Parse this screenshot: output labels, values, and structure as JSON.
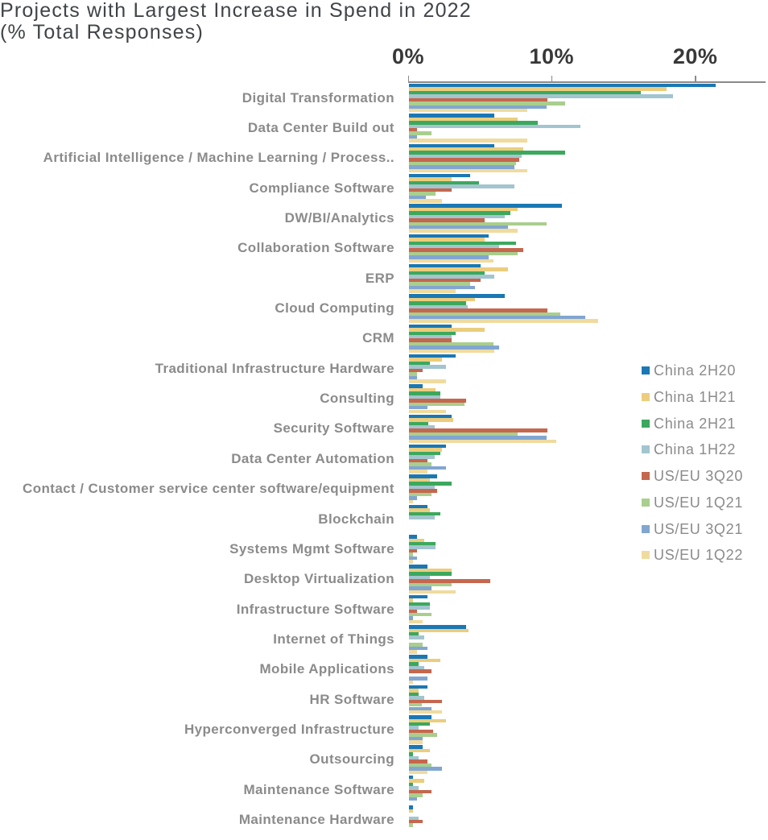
{
  "title": "Projects with Largest Increase in Spend in 2022",
  "subtitle": "(% Total Responses)",
  "chart_data": {
    "type": "bar",
    "orientation": "horizontal",
    "unit": "% of total responses",
    "title": "Projects with Largest Increase in Spend in 2022",
    "subtitle": "(% Total Responses)",
    "xlabel": "",
    "ylabel": "",
    "xlim": [
      0,
      25
    ],
    "grid": false,
    "legend_position": "right",
    "x_axis_ticks": [
      {
        "value": 0,
        "label": "0%"
      },
      {
        "value": 10,
        "label": "10%"
      },
      {
        "value": 20,
        "label": "20%"
      }
    ],
    "categories": [
      "Digital Transformation",
      "Data Center Build out",
      "Artificial Intelligence / Machine Learning / Process..",
      "Compliance Software",
      "DW/BI/Analytics",
      "Collaboration Software",
      "ERP",
      "Cloud Computing",
      "CRM",
      "Traditional Infrastructure Hardware",
      "Consulting",
      "Security Software",
      "Data Center Automation",
      "Contact / Customer service center software/equipment",
      "Blockchain",
      "Systems Mgmt Software",
      "Desktop Virtualization",
      "Infrastructure Software",
      "Internet of Things",
      "Mobile Applications",
      "HR Software",
      "Hyperconverged Infrastructure",
      "Outsourcing",
      "Maintenance Software",
      "Maintenance Hardware"
    ],
    "series": [
      {
        "name": "China 2H20",
        "color": "#1a78b4",
        "values": [
          21.4,
          6.0,
          6.0,
          4.3,
          10.7,
          5.6,
          5.0,
          6.7,
          3.0,
          3.3,
          1.0,
          3.0,
          2.6,
          2.0,
          1.3,
          0.6,
          1.3,
          1.3,
          4.0,
          1.3,
          1.3,
          1.6,
          1.0,
          0.3,
          0.3
        ]
      },
      {
        "name": "China 1H21",
        "color": "#ebcd7d",
        "values": [
          18.0,
          7.6,
          8.0,
          3.0,
          7.6,
          5.3,
          6.9,
          4.6,
          5.3,
          2.3,
          1.9,
          3.1,
          2.3,
          1.5,
          1.5,
          1.1,
          3.0,
          0.3,
          4.2,
          2.2,
          0.7,
          2.6,
          1.5,
          1.1,
          0.3
        ]
      },
      {
        "name": "China 2H21",
        "color": "#3ca85d",
        "values": [
          16.2,
          9.0,
          10.9,
          4.9,
          7.1,
          7.5,
          5.3,
          4.0,
          3.3,
          1.5,
          2.2,
          1.4,
          2.2,
          3.0,
          2.2,
          1.9,
          3.0,
          1.5,
          0.7,
          0.7,
          0.7,
          1.5,
          0.3,
          0.3,
          0
        ]
      },
      {
        "name": "China 1H22",
        "color": "#a2c5cf",
        "values": [
          18.4,
          12.0,
          7.9,
          7.4,
          6.7,
          6.3,
          6.0,
          4.1,
          3.0,
          2.6,
          2.2,
          1.8,
          1.8,
          1.8,
          1.8,
          1.9,
          1.5,
          1.5,
          1.1,
          1.1,
          1.1,
          0.7,
          0.7,
          0.7,
          0.7
        ]
      },
      {
        "name": "US/EU 3Q20",
        "color": "#c5674e",
        "values": [
          9.7,
          0.6,
          7.7,
          3.0,
          5.3,
          8.0,
          5.0,
          9.7,
          3.0,
          1.0,
          4.0,
          9.7,
          1.3,
          2.0,
          0,
          0.6,
          5.7,
          0.6,
          0,
          1.6,
          2.3,
          1.7,
          1.3,
          1.6,
          1.0
        ]
      },
      {
        "name": "US/EU 1Q21",
        "color": "#a9ce8e",
        "values": [
          10.9,
          1.6,
          7.5,
          1.9,
          9.6,
          7.6,
          4.3,
          10.6,
          5.9,
          0.6,
          3.9,
          7.6,
          1.6,
          1.6,
          0,
          0.3,
          3.0,
          1.6,
          1.0,
          0,
          0.9,
          2.0,
          1.6,
          1.0,
          0.3
        ]
      },
      {
        "name": "US/EU 3Q21",
        "color": "#82a6d0",
        "values": [
          9.6,
          0.6,
          7.4,
          1.2,
          6.9,
          5.6,
          4.6,
          12.3,
          6.3,
          0.6,
          1.3,
          9.6,
          2.6,
          0.6,
          0,
          0.6,
          1.6,
          0.3,
          1.3,
          1.3,
          1.6,
          1.0,
          2.3,
          0.6,
          0
        ]
      },
      {
        "name": "US/EU 1Q22",
        "color": "#f0db9f",
        "values": [
          8.3,
          8.3,
          8.3,
          2.3,
          7.6,
          5.9,
          3.3,
          13.2,
          6.0,
          2.6,
          2.6,
          10.3,
          1.3,
          0.3,
          0,
          0.3,
          3.3,
          1.0,
          0.6,
          0.3,
          2.3,
          1.0,
          1.3,
          0,
          0
        ]
      }
    ]
  },
  "colors": {
    "background": "#ffffff",
    "title_text": "#404448",
    "axis_line": "#8a8a8a",
    "tick_label": "#383838",
    "category_label": "#8b8b8b",
    "legend_label": "#8b8b8b"
  }
}
